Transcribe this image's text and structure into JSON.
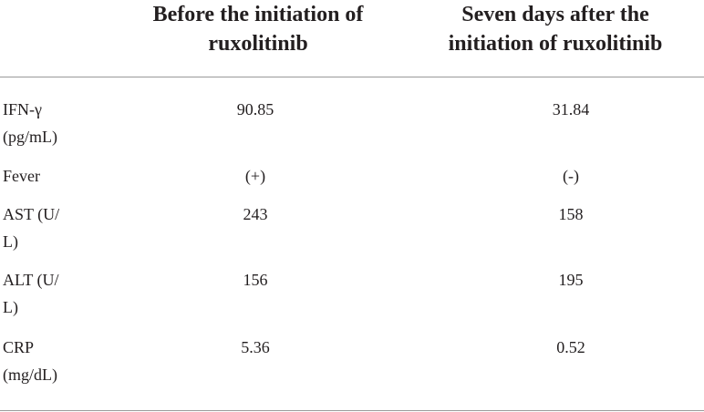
{
  "table": {
    "headers": [
      "",
      "Before the initiation of\nruxolitinib",
      "Seven days after the\ninitiation of ruxolitinib"
    ],
    "rows": [
      {
        "label": "IFN-γ\n(pg/mL)",
        "before": "90.85",
        "after": "31.84"
      },
      {
        "label": "Fever",
        "before": "(+)",
        "after": "(-)"
      },
      {
        "label": "AST (U/\nL)",
        "before": "243",
        "after": "158"
      },
      {
        "label": "ALT (U/\nL)",
        "before": "156",
        "after": "195"
      },
      {
        "label": "CRP\n(mg/dL)",
        "before": "5.36",
        "after": "0.52"
      }
    ]
  }
}
